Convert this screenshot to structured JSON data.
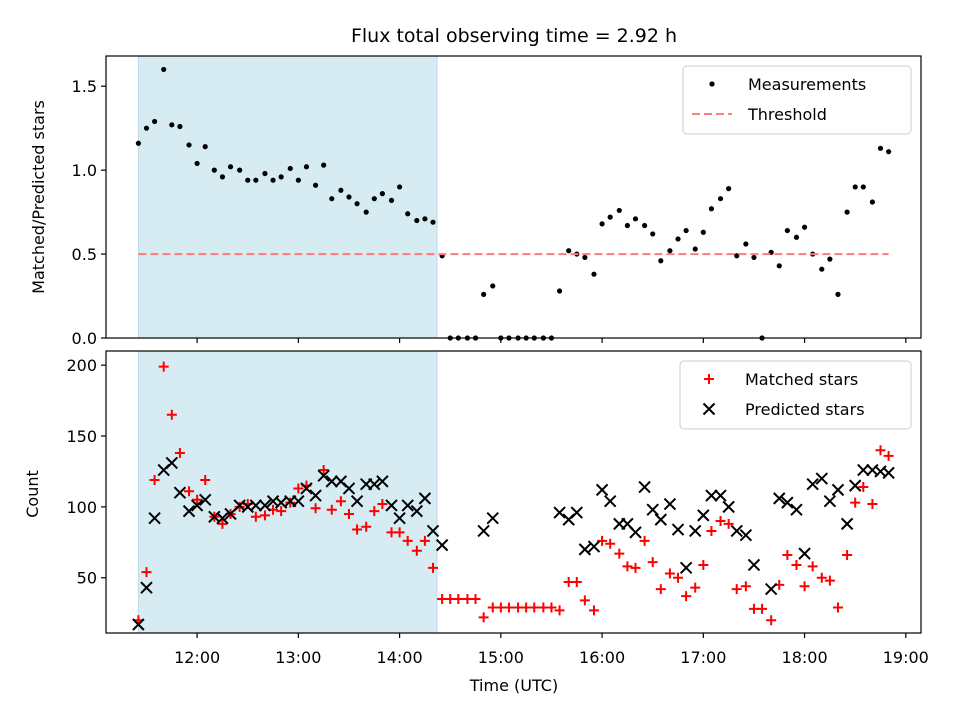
{
  "chart_data": [
    {
      "type": "scatter",
      "title": "Flux total observing time = 2.92 h",
      "xlabel": "",
      "ylabel": "Matched/Predicted stars",
      "xlim": [
        11.1,
        19.15
      ],
      "ylim": [
        0,
        1.68
      ],
      "xticks": [
        12,
        13,
        14,
        15,
        16,
        17,
        18,
        19
      ],
      "xtick_labels_shown": false,
      "yticks": [
        0.0,
        0.5,
        1.0,
        1.5
      ],
      "ytick_labels": [
        "0.0",
        "0.5",
        "1.0",
        "1.5"
      ],
      "shaded_span": {
        "x_start": 11.42,
        "x_end": 14.37,
        "color": "#add8e6"
      },
      "legend": {
        "position": "top-right",
        "entries": [
          "Measurements",
          "Threshold"
        ]
      },
      "series": [
        {
          "name": "Measurements",
          "marker": "dot",
          "color": "#000000",
          "points": [
            [
              11.42,
              1.16
            ],
            [
              11.5,
              1.25
            ],
            [
              11.58,
              1.29
            ],
            [
              11.67,
              1.6
            ],
            [
              11.75,
              1.27
            ],
            [
              11.83,
              1.26
            ],
            [
              11.92,
              1.15
            ],
            [
              12.0,
              1.04
            ],
            [
              12.08,
              1.14
            ],
            [
              12.17,
              1.0
            ],
            [
              12.25,
              0.96
            ],
            [
              12.33,
              1.02
            ],
            [
              12.42,
              1.0
            ],
            [
              12.5,
              0.94
            ],
            [
              12.58,
              0.94
            ],
            [
              12.67,
              0.98
            ],
            [
              12.75,
              0.94
            ],
            [
              12.83,
              0.96
            ],
            [
              12.92,
              1.01
            ],
            [
              13.0,
              0.94
            ],
            [
              13.08,
              1.02
            ],
            [
              13.17,
              0.91
            ],
            [
              13.25,
              1.03
            ],
            [
              13.33,
              0.83
            ],
            [
              13.42,
              0.88
            ],
            [
              13.5,
              0.84
            ],
            [
              13.58,
              0.8
            ],
            [
              13.67,
              0.75
            ],
            [
              13.75,
              0.83
            ],
            [
              13.83,
              0.86
            ],
            [
              13.92,
              0.82
            ],
            [
              14.0,
              0.9
            ],
            [
              14.08,
              0.74
            ],
            [
              14.17,
              0.7
            ],
            [
              14.25,
              0.71
            ],
            [
              14.33,
              0.69
            ],
            [
              14.42,
              0.49
            ],
            [
              14.5,
              0.0
            ],
            [
              14.58,
              0.0
            ],
            [
              14.67,
              0.0
            ],
            [
              14.75,
              0.0
            ],
            [
              14.83,
              0.26
            ],
            [
              14.92,
              0.31
            ],
            [
              15.0,
              0.0
            ],
            [
              15.08,
              0.0
            ],
            [
              15.17,
              0.0
            ],
            [
              15.25,
              0.0
            ],
            [
              15.33,
              0.0
            ],
            [
              15.42,
              0.0
            ],
            [
              15.5,
              0.0
            ],
            [
              15.58,
              0.28
            ],
            [
              15.67,
              0.52
            ],
            [
              15.75,
              0.5
            ],
            [
              15.83,
              0.48
            ],
            [
              15.92,
              0.38
            ],
            [
              16.0,
              0.68
            ],
            [
              16.08,
              0.72
            ],
            [
              16.17,
              0.76
            ],
            [
              16.25,
              0.67
            ],
            [
              16.33,
              0.71
            ],
            [
              16.42,
              0.67
            ],
            [
              16.5,
              0.62
            ],
            [
              16.58,
              0.46
            ],
            [
              16.67,
              0.52
            ],
            [
              16.75,
              0.59
            ],
            [
              16.83,
              0.64
            ],
            [
              16.92,
              0.53
            ],
            [
              17.0,
              0.63
            ],
            [
              17.08,
              0.77
            ],
            [
              17.17,
              0.83
            ],
            [
              17.25,
              0.89
            ],
            [
              17.33,
              0.49
            ],
            [
              17.42,
              0.56
            ],
            [
              17.5,
              0.48
            ],
            [
              17.58,
              0.0
            ],
            [
              17.67,
              0.51
            ],
            [
              17.75,
              0.43
            ],
            [
              17.83,
              0.64
            ],
            [
              17.92,
              0.6
            ],
            [
              18.0,
              0.66
            ],
            [
              18.08,
              0.5
            ],
            [
              18.17,
              0.41
            ],
            [
              18.25,
              0.47
            ],
            [
              18.33,
              0.26
            ],
            [
              18.42,
              0.75
            ],
            [
              18.5,
              0.9
            ],
            [
              18.58,
              0.9
            ],
            [
              18.67,
              0.81
            ],
            [
              18.75,
              1.13
            ],
            [
              18.83,
              1.11
            ]
          ]
        },
        {
          "name": "Threshold",
          "style": "dashed-line",
          "color": "#ff7b7b",
          "x": [
            11.42,
            18.83
          ],
          "values": [
            0.5,
            0.5
          ]
        }
      ]
    },
    {
      "type": "scatter",
      "title": "",
      "xlabel": "Time (UTC)",
      "ylabel": "Count",
      "xlim": [
        11.1,
        19.15
      ],
      "ylim": [
        11,
        210
      ],
      "xticks": [
        12,
        13,
        14,
        15,
        16,
        17,
        18,
        19
      ],
      "xtick_labels": [
        "12:00",
        "13:00",
        "14:00",
        "15:00",
        "16:00",
        "17:00",
        "18:00",
        "19:00"
      ],
      "yticks": [
        50,
        100,
        150,
        200
      ],
      "ytick_labels": [
        "50",
        "100",
        "150",
        "200"
      ],
      "shaded_span": {
        "x_start": 11.42,
        "x_end": 14.37,
        "color": "#add8e6"
      },
      "legend": {
        "position": "top-right",
        "entries": [
          "Matched stars",
          "Predicted stars"
        ]
      },
      "series": [
        {
          "name": "Matched stars",
          "marker": "plus",
          "color": "#ff0000",
          "points": [
            [
              11.42,
              20
            ],
            [
              11.5,
              54
            ],
            [
              11.58,
              119
            ],
            [
              11.67,
              199
            ],
            [
              11.75,
              165
            ],
            [
              11.83,
              138
            ],
            [
              11.92,
              111
            ],
            [
              12.0,
              105
            ],
            [
              12.08,
              119
            ],
            [
              12.17,
              93
            ],
            [
              12.25,
              88
            ],
            [
              12.33,
              95
            ],
            [
              12.42,
              100
            ],
            [
              12.5,
              102
            ],
            [
              12.58,
              93
            ],
            [
              12.67,
              94
            ],
            [
              12.75,
              98
            ],
            [
              12.83,
              97
            ],
            [
              12.92,
              103
            ],
            [
              13.0,
              113
            ],
            [
              13.08,
              115
            ],
            [
              13.17,
              99
            ],
            [
              13.25,
              126
            ],
            [
              13.33,
              98
            ],
            [
              13.42,
              104
            ],
            [
              13.5,
              95
            ],
            [
              13.58,
              84
            ],
            [
              13.67,
              86
            ],
            [
              13.75,
              97
            ],
            [
              13.83,
              102
            ],
            [
              13.92,
              82
            ],
            [
              14.0,
              82
            ],
            [
              14.08,
              76
            ],
            [
              14.17,
              69
            ],
            [
              14.25,
              76
            ],
            [
              14.33,
              57
            ],
            [
              14.42,
              35
            ],
            [
              14.5,
              35
            ],
            [
              14.58,
              35
            ],
            [
              14.67,
              35
            ],
            [
              14.75,
              35
            ],
            [
              14.83,
              22
            ],
            [
              14.92,
              29
            ],
            [
              15.0,
              29
            ],
            [
              15.08,
              29
            ],
            [
              15.17,
              29
            ],
            [
              15.25,
              29
            ],
            [
              15.33,
              29
            ],
            [
              15.42,
              29
            ],
            [
              15.5,
              29
            ],
            [
              15.58,
              27
            ],
            [
              15.67,
              47
            ],
            [
              15.75,
              47
            ],
            [
              15.83,
              34
            ],
            [
              15.92,
              27
            ],
            [
              16.0,
              76
            ],
            [
              16.08,
              74
            ],
            [
              16.17,
              67
            ],
            [
              16.25,
              58
            ],
            [
              16.33,
              57
            ],
            [
              16.42,
              76
            ],
            [
              16.5,
              61
            ],
            [
              16.58,
              42
            ],
            [
              16.67,
              53
            ],
            [
              16.75,
              50
            ],
            [
              16.83,
              37
            ],
            [
              16.92,
              43
            ],
            [
              17.0,
              59
            ],
            [
              17.08,
              83
            ],
            [
              17.17,
              90
            ],
            [
              17.25,
              88
            ],
            [
              17.33,
              42
            ],
            [
              17.42,
              44
            ],
            [
              17.5,
              28
            ],
            [
              17.58,
              28
            ],
            [
              17.67,
              20
            ],
            [
              17.75,
              45
            ],
            [
              17.83,
              66
            ],
            [
              17.92,
              59
            ],
            [
              18.0,
              44
            ],
            [
              18.08,
              58
            ],
            [
              18.17,
              50
            ],
            [
              18.25,
              48
            ],
            [
              18.33,
              29
            ],
            [
              18.42,
              66
            ],
            [
              18.5,
              103
            ],
            [
              18.58,
              114
            ],
            [
              18.67,
              102
            ],
            [
              18.75,
              140
            ],
            [
              18.83,
              136
            ]
          ]
        },
        {
          "name": "Predicted stars",
          "marker": "x",
          "color": "#000000",
          "points": [
            [
              11.42,
              17
            ],
            [
              11.5,
              43
            ],
            [
              11.58,
              92
            ],
            [
              11.67,
              126
            ],
            [
              11.75,
              131
            ],
            [
              11.83,
              110
            ],
            [
              11.92,
              97
            ],
            [
              12.0,
              101
            ],
            [
              12.08,
              105
            ],
            [
              12.17,
              93
            ],
            [
              12.25,
              92
            ],
            [
              12.33,
              95
            ],
            [
              12.42,
              101
            ],
            [
              12.5,
              100
            ],
            [
              12.58,
              101
            ],
            [
              12.67,
              101
            ],
            [
              12.75,
              104
            ],
            [
              12.83,
              103
            ],
            [
              12.92,
              104
            ],
            [
              13.0,
              104
            ],
            [
              13.08,
              113
            ],
            [
              13.17,
              108
            ],
            [
              13.25,
              122
            ],
            [
              13.33,
              118
            ],
            [
              13.42,
              118
            ],
            [
              13.5,
              113
            ],
            [
              13.58,
              104
            ],
            [
              13.67,
              116
            ],
            [
              13.75,
              116
            ],
            [
              13.83,
              118
            ],
            [
              13.92,
              101
            ],
            [
              14.0,
              92
            ],
            [
              14.08,
              101
            ],
            [
              14.17,
              97
            ],
            [
              14.25,
              106
            ],
            [
              14.33,
              83
            ],
            [
              14.42,
              73
            ],
            [
              14.83,
              83
            ],
            [
              14.92,
              92
            ],
            [
              15.58,
              96
            ],
            [
              15.67,
              91
            ],
            [
              15.75,
              96
            ],
            [
              15.83,
              70
            ],
            [
              15.92,
              72
            ],
            [
              16.0,
              112
            ],
            [
              16.08,
              104
            ],
            [
              16.17,
              88
            ],
            [
              16.25,
              88
            ],
            [
              16.33,
              82
            ],
            [
              16.42,
              114
            ],
            [
              16.5,
              98
            ],
            [
              16.58,
              91
            ],
            [
              16.67,
              102
            ],
            [
              16.75,
              84
            ],
            [
              16.83,
              57
            ],
            [
              16.92,
              83
            ],
            [
              17.0,
              94
            ],
            [
              17.08,
              108
            ],
            [
              17.17,
              108
            ],
            [
              17.25,
              100
            ],
            [
              17.33,
              83
            ],
            [
              17.42,
              80
            ],
            [
              17.5,
              59
            ],
            [
              17.67,
              42
            ],
            [
              17.75,
              106
            ],
            [
              17.83,
              103
            ],
            [
              17.92,
              98
            ],
            [
              18.0,
              67
            ],
            [
              18.08,
              116
            ],
            [
              18.17,
              120
            ],
            [
              18.25,
              104
            ],
            [
              18.33,
              112
            ],
            [
              18.42,
              88
            ],
            [
              18.5,
              115
            ],
            [
              18.58,
              126
            ],
            [
              18.67,
              126
            ],
            [
              18.75,
              125
            ],
            [
              18.83,
              124
            ]
          ]
        }
      ]
    }
  ]
}
